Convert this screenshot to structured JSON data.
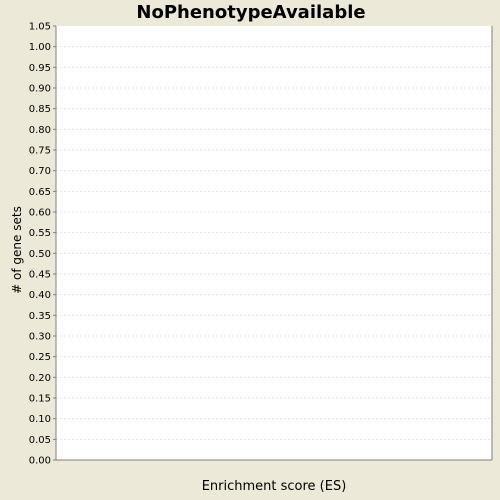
{
  "chart_data": {
    "type": "bar",
    "title": "NoPhenotypeAvailable",
    "xlabel": "Enrichment score (ES)",
    "ylabel": "# of gene sets",
    "ylim": [
      0,
      1.05
    ],
    "yticks": [
      0.0,
      0.05,
      0.1,
      0.15,
      0.2,
      0.25,
      0.3,
      0.35,
      0.4,
      0.45,
      0.5,
      0.55,
      0.6,
      0.65,
      0.7,
      0.75,
      0.8,
      0.85,
      0.9,
      0.95,
      1.0,
      1.05
    ],
    "grid": true,
    "categories": [],
    "values": []
  },
  "colors": {
    "background": "#ece9d8",
    "plot_area": "#ffffff",
    "grid": "#e6e6e6",
    "axis": "#808080",
    "text": "#000000"
  }
}
